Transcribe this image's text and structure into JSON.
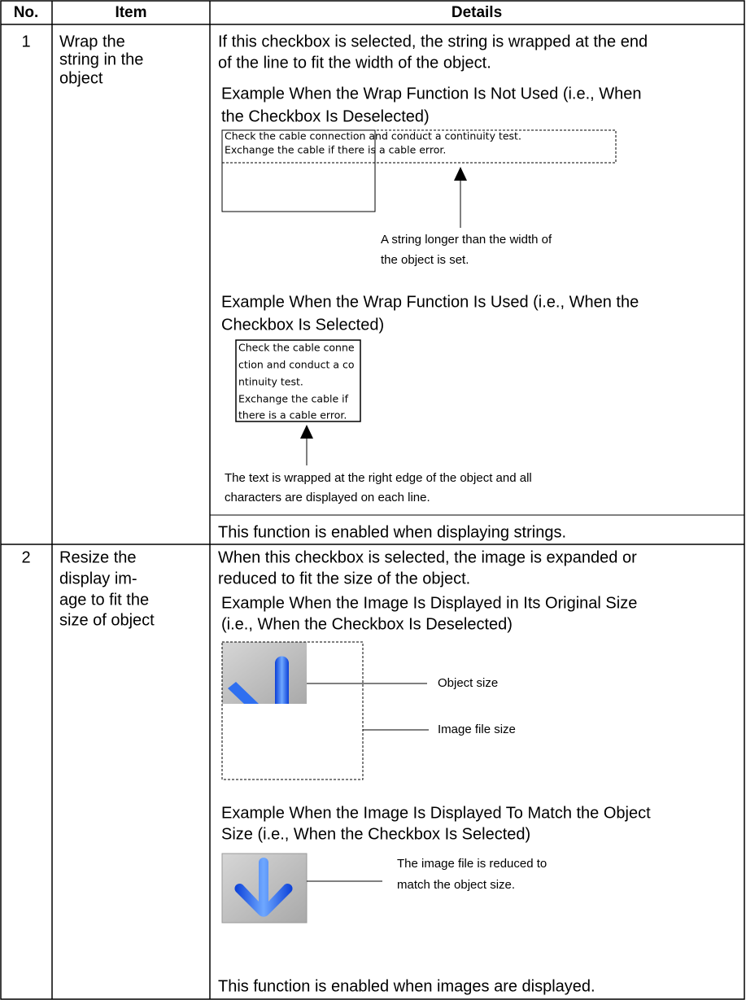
{
  "table": {
    "headers": [
      "No.",
      "Item",
      "Details"
    ],
    "rows": [
      {
        "no": "1",
        "item": [
          "Wrap the",
          "string in the",
          "object"
        ],
        "intro": [
          "If this checkbox is selected, the string is wrapped at the end",
          "of the line to fit the width of the object."
        ],
        "example_1": {
          "title": [
            "Example When the Wrap Function Is Not Used (i.e., When",
            "the Checkbox Is Deselected)"
          ],
          "sample": [
            "Check the cable connection and conduct a continuity test.",
            "Exchange the cable if there is a cable error."
          ],
          "note": [
            "A string longer than the width of",
            "the object is set."
          ]
        },
        "example_2": {
          "title": [
            "Example When the Wrap Function Is Used (i.e., When the",
            "Checkbox Is Selected)"
          ],
          "sample": [
            "Check the cable conne",
            "ction and conduct a co",
            "ntinuity test.",
            "Exchange the cable if",
            "there is a cable error."
          ],
          "note": [
            "The text is wrapped at the right edge of the object and all",
            "characters are displayed on each line."
          ]
        },
        "footer": "This function is enabled when displaying strings."
      },
      {
        "no": "2",
        "item": [
          "Resize the",
          "display im-",
          "age to fit the",
          "size of object"
        ],
        "intro": [
          "When this checkbox is selected, the image is expanded or",
          "reduced to fit the size of the object."
        ],
        "example_1": {
          "title": [
            "Example When the Image Is Displayed in Its Original Size",
            "(i.e., When the Checkbox Is Deselected)"
          ],
          "labels": [
            "Object size",
            "Image file size"
          ]
        },
        "example_2": {
          "title": [
            "Example When the Image Is Displayed To Match the Object",
            "Size (i.e., When the Checkbox Is Selected)"
          ],
          "note": [
            "The image file is reduced to",
            "match the object size."
          ]
        },
        "footer": "This function is enabled when images are displayed."
      }
    ]
  }
}
